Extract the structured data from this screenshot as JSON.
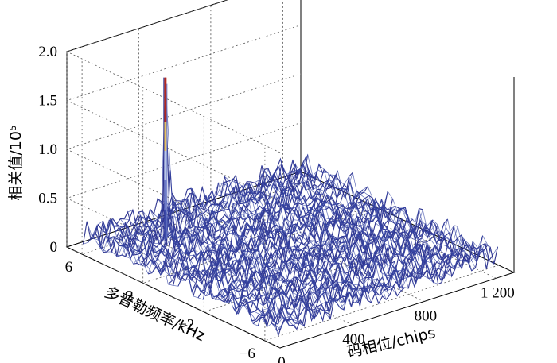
{
  "chart_data": {
    "type": "surface3d",
    "title": "",
    "xlabel": "码相位/chips",
    "ylabel": "多普勒频率/kHz",
    "zlabel": "相关值/10⁵",
    "x_ticks": [
      "0",
      "400",
      "800",
      "1 200"
    ],
    "x_tick_values": [
      0,
      400,
      800,
      1200
    ],
    "y_ticks": [
      "6",
      "2",
      "−2",
      "−6"
    ],
    "y_tick_values": [
      6,
      2,
      -2,
      -6
    ],
    "z_ticks": [
      "0",
      "0.5",
      "1.0",
      "1.5",
      "2.0"
    ],
    "z_tick_values": [
      0,
      0.5,
      1.0,
      1.5,
      2.0
    ],
    "xlim": [
      0,
      1300
    ],
    "ylim": [
      -7,
      7
    ],
    "zlim": [
      0,
      2.0
    ],
    "grid": true,
    "noise_floor_range": [
      0.05,
      0.3
    ],
    "peak": {
      "code_phase": 250,
      "doppler_khz": 3.5,
      "value": 1.85
    },
    "colormap": [
      "#2b2f8f",
      "#3a4aa8",
      "#6d7cc9",
      "#b9c7e8",
      "#e8c061",
      "#b5281e"
    ]
  }
}
